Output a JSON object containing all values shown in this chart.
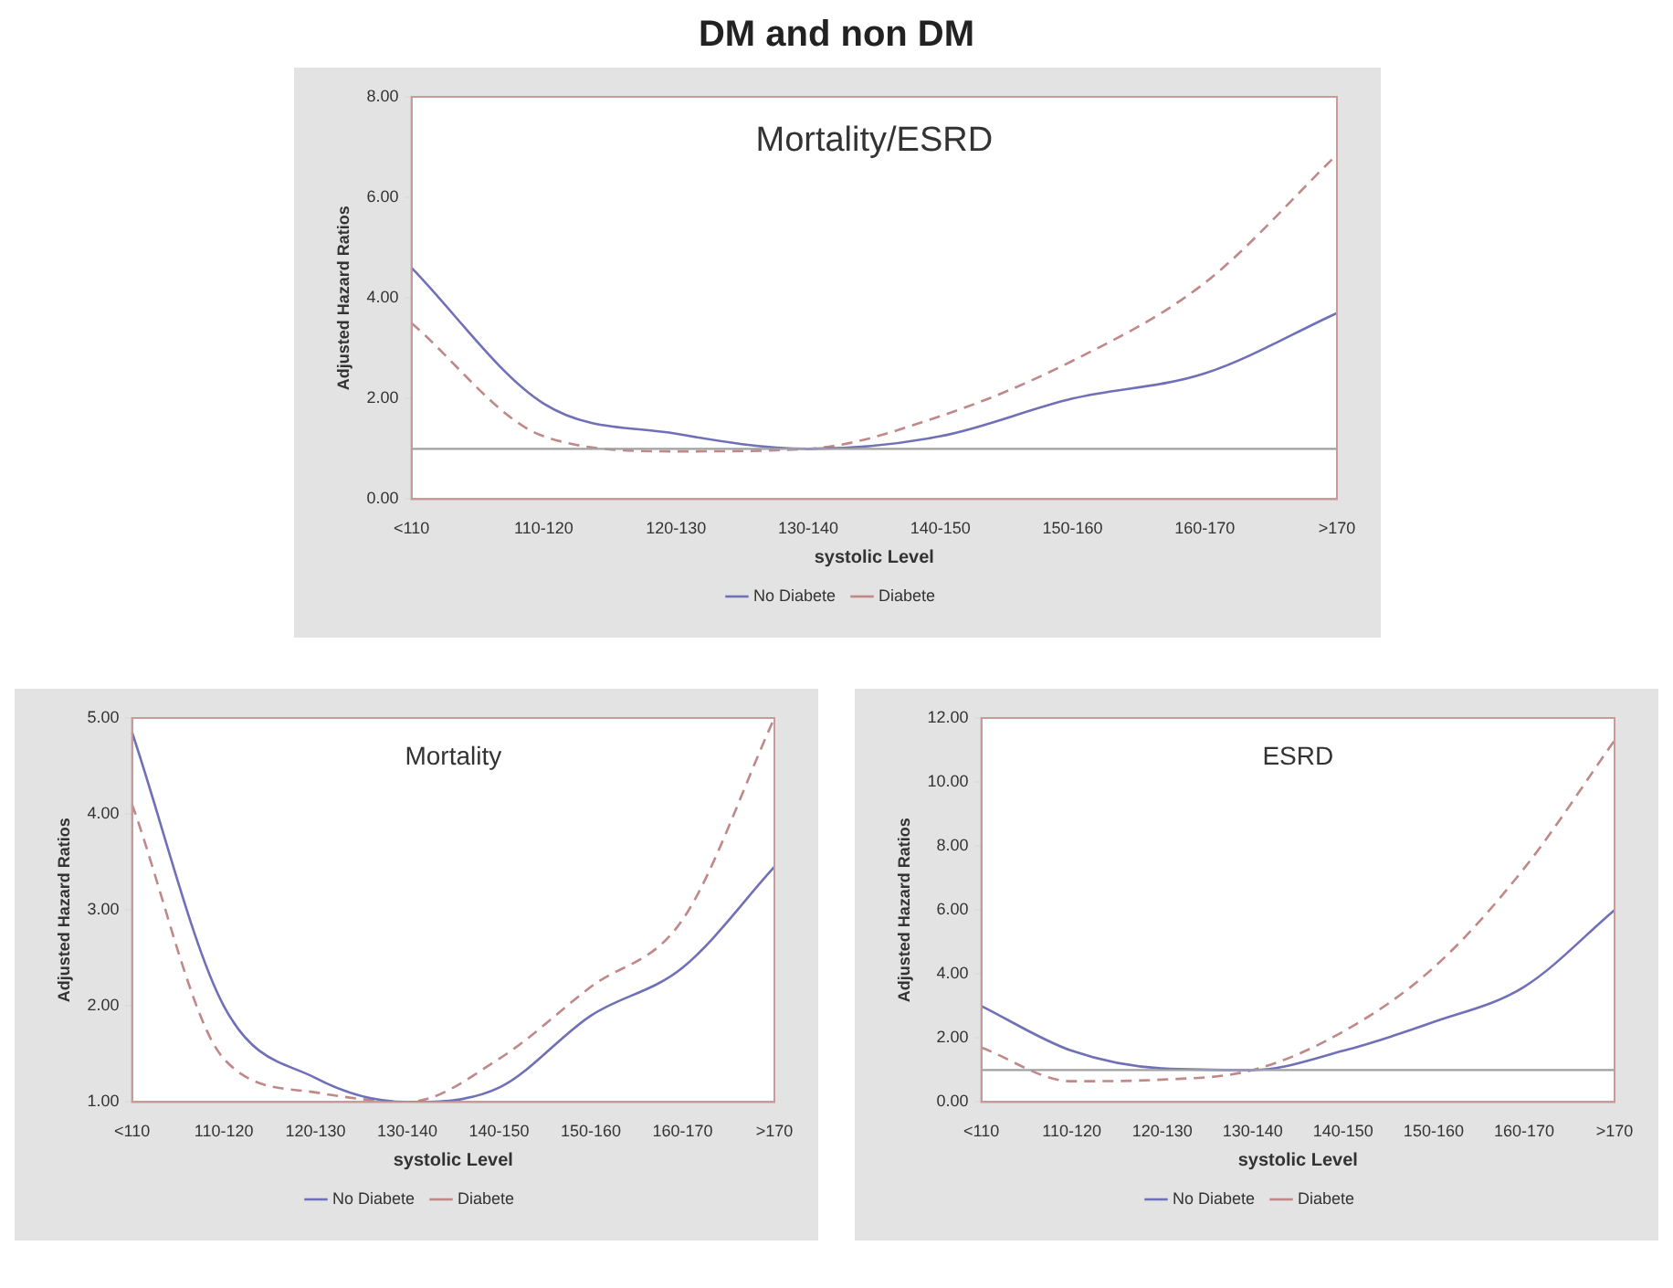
{
  "chart_data": [
    {
      "type": "line",
      "title": "DM and non DM",
      "subtitle": "Mortality/ESRD",
      "xlabel": "systolic Level",
      "ylabel": "Adjusted Hazard Ratios",
      "categories": [
        "<110",
        "110-120",
        "120-130",
        "130-140",
        "140-150",
        "150-160",
        "160-170",
        ">170"
      ],
      "series": [
        {
          "name": "No Diabete",
          "color": "#7070b8",
          "line_style": "solid",
          "values": [
            4.6,
            1.9,
            1.3,
            1.0,
            1.25,
            2.0,
            2.5,
            3.7
          ]
        },
        {
          "name": "Diabete",
          "color": "#c08888",
          "line_style": "dashed",
          "values": [
            3.5,
            1.25,
            0.95,
            1.0,
            1.65,
            2.75,
            4.3,
            6.85
          ]
        }
      ],
      "ylim": [
        0,
        8
      ],
      "yticks": [
        {
          "value": 0,
          "label": "0.00"
        },
        {
          "value": 2,
          "label": "2.00"
        },
        {
          "value": 4,
          "label": "4.00"
        },
        {
          "value": 6,
          "label": "6.00"
        },
        {
          "value": 8,
          "label": "8.00"
        }
      ],
      "ref_lines": [
        {
          "axis": "y",
          "value": 1,
          "color": "#a0a0a0"
        }
      ],
      "grid": false,
      "legend": "bottom",
      "marker": "none"
    },
    {
      "type": "line",
      "subtitle": "Mortality",
      "xlabel": "systolic Level",
      "ylabel": "Adjusted Hazard Ratios",
      "categories": [
        "<110",
        "110-120",
        "120-130",
        "130-140",
        "140-150",
        "150-160",
        "160-170",
        ">170"
      ],
      "series": [
        {
          "name": "No Diabete",
          "color": "#7070b8",
          "line_style": "solid",
          "values": [
            4.85,
            2.0,
            1.25,
            1.0,
            1.15,
            1.9,
            2.4,
            3.45
          ]
        },
        {
          "name": "Diabete",
          "color": "#c08888",
          "line_style": "dashed",
          "values": [
            4.1,
            1.45,
            1.1,
            1.0,
            1.45,
            2.2,
            2.9,
            5.0
          ]
        }
      ],
      "ylim": [
        1,
        5
      ],
      "yticks": [
        {
          "value": 1,
          "label": "1.00"
        },
        {
          "value": 2,
          "label": "2.00"
        },
        {
          "value": 3,
          "label": "3.00"
        },
        {
          "value": 4,
          "label": "4.00"
        },
        {
          "value": 5,
          "label": "5.00"
        }
      ],
      "grid": false,
      "legend": "bottom",
      "marker": "none"
    },
    {
      "type": "line",
      "subtitle": "ESRD",
      "xlabel": "systolic Level",
      "ylabel": "Adjusted Hazard Ratios",
      "categories": [
        "<110",
        "110-120",
        "120-130",
        "130-140",
        "140-150",
        "150-160",
        "160-170",
        ">170"
      ],
      "series": [
        {
          "name": "No Diabete",
          "color": "#7070b8",
          "line_style": "solid",
          "values": [
            3.0,
            1.6,
            1.05,
            1.0,
            1.6,
            2.5,
            3.6,
            6.0
          ]
        },
        {
          "name": "Diabete",
          "color": "#c08888",
          "line_style": "dashed",
          "values": [
            1.7,
            0.65,
            0.7,
            1.0,
            2.2,
            4.2,
            7.3,
            11.3
          ]
        }
      ],
      "ylim": [
        0,
        12
      ],
      "yticks": [
        {
          "value": 0,
          "label": "0.00"
        },
        {
          "value": 2,
          "label": "2.00"
        },
        {
          "value": 4,
          "label": "4.00"
        },
        {
          "value": 6,
          "label": "6.00"
        },
        {
          "value": 8,
          "label": "8.00"
        },
        {
          "value": 10,
          "label": "10.00"
        },
        {
          "value": 12,
          "label": "12.00"
        }
      ],
      "ref_lines": [
        {
          "axis": "y",
          "value": 1,
          "color": "#a0a0a0"
        }
      ],
      "grid": false,
      "legend": "bottom",
      "marker": "none"
    }
  ]
}
